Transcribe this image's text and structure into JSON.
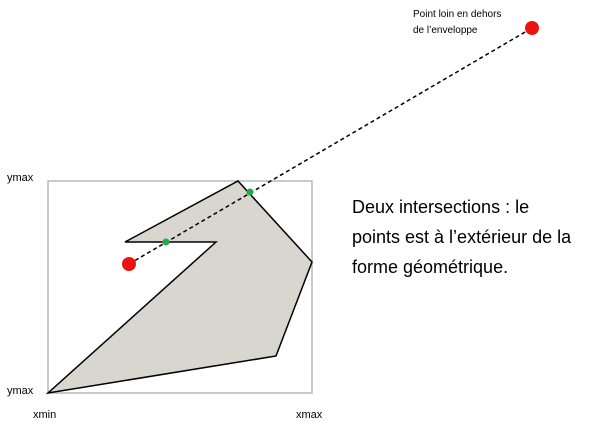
{
  "annotation": {
    "line1": "Point loin en dehors",
    "line2": "de l’enveloppe"
  },
  "explanation": {
    "line1": "Deux intersections : le",
    "line2": "points est à l’extérieur de la",
    "line3": "forme géométrique."
  },
  "axes": {
    "ymax_top": "ymax",
    "ymax_bottom": "ymax",
    "xmin": "xmin",
    "xmax": "xmax"
  },
  "colors": {
    "bbox_stroke": "#b8b8b8",
    "polygon_fill": "#d8d6cf",
    "polygon_stroke": "#000000",
    "test_point": "#ee1111",
    "intersection_point": "#22aa44",
    "ray": "#000000"
  },
  "intersection_count": 2
}
